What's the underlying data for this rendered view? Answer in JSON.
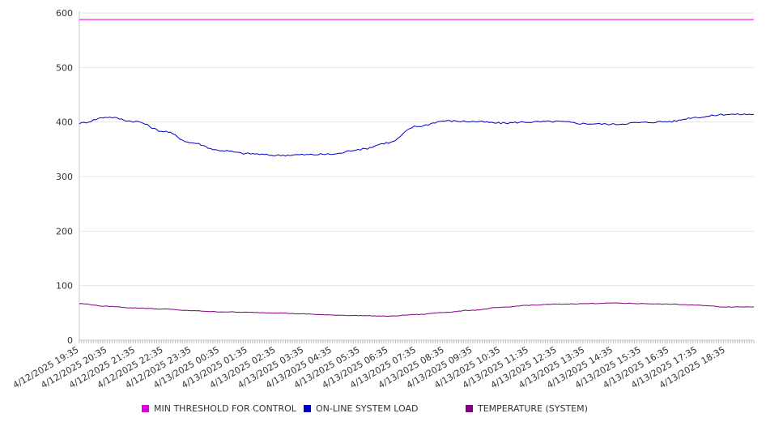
{
  "chart_data": {
    "type": "line",
    "title": "",
    "xlabel": "",
    "ylabel": "",
    "ylim": [
      0,
      600
    ],
    "y_ticks": [
      0,
      100,
      200,
      300,
      400,
      500,
      600
    ],
    "grid": true,
    "legend_position": "bottom",
    "x": [
      "4/12/2025 19:35",
      "4/12/2025 20:35",
      "4/12/2025 21:35",
      "4/12/2025 22:35",
      "4/12/2025 23:35",
      "4/13/2025 00:35",
      "4/13/2025 01:35",
      "4/13/2025 02:35",
      "4/13/2025 03:35",
      "4/13/2025 04:35",
      "4/13/2025 05:35",
      "4/13/2025 06:35",
      "4/13/2025 07:35",
      "4/13/2025 08:35",
      "4/13/2025 09:35",
      "4/13/2025 10:35",
      "4/13/2025 11:35",
      "4/13/2025 12:35",
      "4/13/2025 13:35",
      "4/13/2025 14:35",
      "4/13/2025 15:35",
      "4/13/2025 16:35",
      "4/13/2025 17:35",
      "4/13/2025 18:35"
    ],
    "series": [
      {
        "name": "MIN THRESHOLD FOR CONTROL",
        "color": "#e000e0",
        "values": [
          588,
          588,
          588,
          588,
          588,
          588,
          588,
          588,
          588,
          588,
          588,
          588,
          588,
          588,
          588,
          588,
          588,
          588,
          588,
          588,
          588,
          588,
          588,
          588
        ]
      },
      {
        "name": "ON-LINE SYSTEM LOAD",
        "color": "#0000cc",
        "values": [
          398,
          409,
          401,
          383,
          362,
          348,
          342,
          339,
          340,
          341,
          350,
          362,
          392,
          402,
          401,
          398,
          400,
          401,
          397,
          396,
          399,
          401,
          409,
          414
        ]
      },
      {
        "name": "TEMPERATURE (SYSTEM)",
        "color": "#800080",
        "values": [
          67,
          62,
          59,
          57,
          54,
          52,
          51,
          50,
          48,
          46,
          45,
          44,
          47,
          51,
          55,
          60,
          64,
          66,
          67,
          68,
          67,
          66,
          64,
          61
        ]
      }
    ]
  }
}
